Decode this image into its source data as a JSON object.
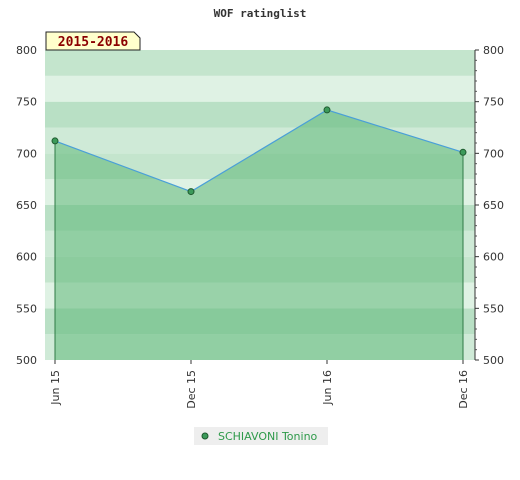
{
  "chart_data": {
    "type": "area",
    "title": "WOF ratinglist",
    "period_label": "2015-2016",
    "categories": [
      "Jun 15",
      "Dec 15",
      "Jun 16",
      "Dec 16"
    ],
    "series": [
      {
        "name": "SCHIAVONI Tonino",
        "values": [
          712,
          663,
          742,
          701
        ]
      }
    ],
    "ylim": [
      500,
      800
    ],
    "y_ticks": [
      500,
      550,
      600,
      650,
      700,
      750,
      800
    ],
    "grid": true,
    "legend_position": "bottom-center",
    "colors": {
      "line": "#4a9fd8",
      "marker": "#3c9a5a",
      "area": "#5fb878",
      "band_light": "#d8eedd",
      "band_dark": "#b3deC0",
      "badge_bg": "#ffffcc",
      "badge_text": "#8b0000",
      "legend_text": "#2e9a4a"
    }
  }
}
